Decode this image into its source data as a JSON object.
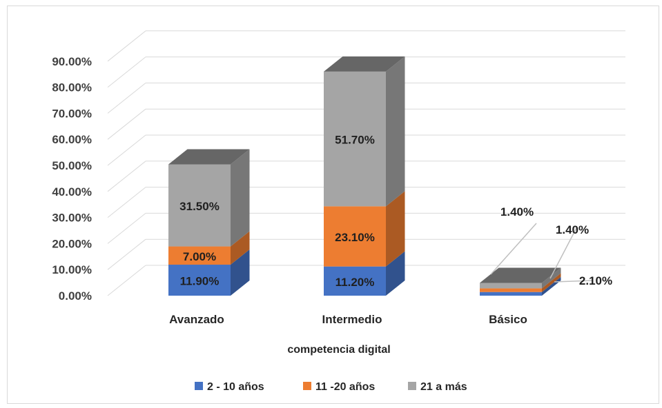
{
  "chart_data": {
    "type": "bar",
    "stacked": true,
    "three_d": true,
    "categories": [
      "Avanzado",
      "Intermedio",
      "Básico"
    ],
    "series": [
      {
        "name": "2 - 10 años",
        "values": [
          11.9,
          11.2,
          1.4
        ],
        "labels": [
          "11.90%",
          "11.20%",
          "1.40%"
        ],
        "color": "#4472c4"
      },
      {
        "name": "11 -20 años",
        "values": [
          7.0,
          23.1,
          1.4
        ],
        "labels": [
          "7.00%",
          "23.10%",
          "1.40%"
        ],
        "color": "#ed7d31"
      },
      {
        "name": "21 a más",
        "values": [
          31.5,
          51.7,
          2.1
        ],
        "labels": [
          "31.50%",
          "51.70%",
          "2.10%"
        ],
        "color": "#a5a5a5"
      }
    ],
    "y_ticks": [
      "0.00%",
      "10.00%",
      "20.00%",
      "30.00%",
      "40.00%",
      "50.00%",
      "60.00%",
      "70.00%",
      "80.00%",
      "90.00%"
    ],
    "ylim": [
      0,
      90
    ],
    "xlabel": "competencia digital",
    "ylabel": "",
    "grid": true,
    "legend": "bottom"
  }
}
